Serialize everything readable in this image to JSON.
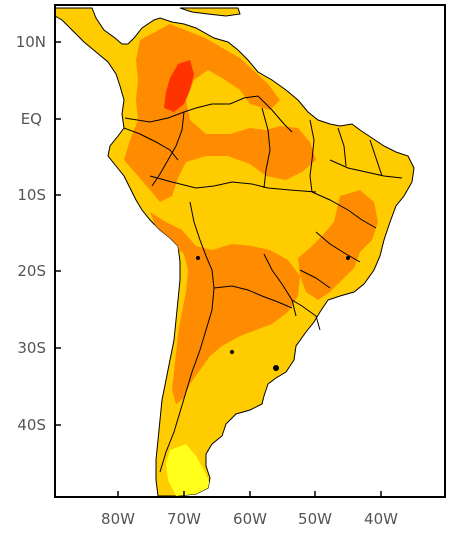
{
  "map": {
    "colors": {
      "land_base": "#ffcc00",
      "band_orange": "#ff8c00",
      "band_red": "#ff3300",
      "band_yellow": "#ffff1a",
      "ocean": "#ffffff",
      "frame": "#000000"
    },
    "extent": {
      "lon_min": -89,
      "lon_max": -29,
      "lat_min": -50,
      "lat_max": 14
    },
    "lat_labels": [
      "10N",
      "EQ",
      "10S",
      "20S",
      "30S",
      "40S"
    ],
    "lon_labels": [
      "80W",
      "70W",
      "60W",
      "50W",
      "40W"
    ]
  }
}
